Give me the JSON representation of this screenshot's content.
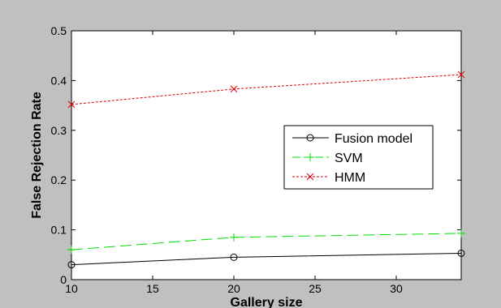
{
  "chart_data": {
    "type": "line",
    "title": "",
    "xlabel": "Gallery size",
    "ylabel": "False  Rejection Rate",
    "xlim": [
      10,
      34
    ],
    "ylim": [
      0,
      0.5
    ],
    "xticks": [
      10,
      15,
      20,
      25,
      30
    ],
    "yticks": [
      0,
      0.1,
      0.2,
      0.3,
      0.4,
      0.5
    ],
    "xtick_labels": [
      "10",
      "15",
      "20",
      "25",
      "30"
    ],
    "ytick_labels": [
      "0",
      "0.1",
      "0.2",
      "0.3",
      "0.4",
      "0.5"
    ],
    "grid": false,
    "legend_position": "center-right",
    "series": [
      {
        "name": "Fusion model",
        "x": [
          10,
          20,
          34
        ],
        "values": [
          0.03,
          0.045,
          0.053
        ],
        "color": "#000000",
        "marker": "circle",
        "linestyle": "solid"
      },
      {
        "name": "SVM",
        "x": [
          10,
          20,
          34
        ],
        "values": [
          0.06,
          0.085,
          0.093
        ],
        "color": "#00dd00",
        "marker": "plus",
        "linestyle": "dashed"
      },
      {
        "name": "HMM",
        "x": [
          10,
          20,
          34
        ],
        "values": [
          0.352,
          0.383,
          0.412
        ],
        "color": "#dd0000",
        "marker": "cross",
        "linestyle": "dotted"
      }
    ]
  }
}
